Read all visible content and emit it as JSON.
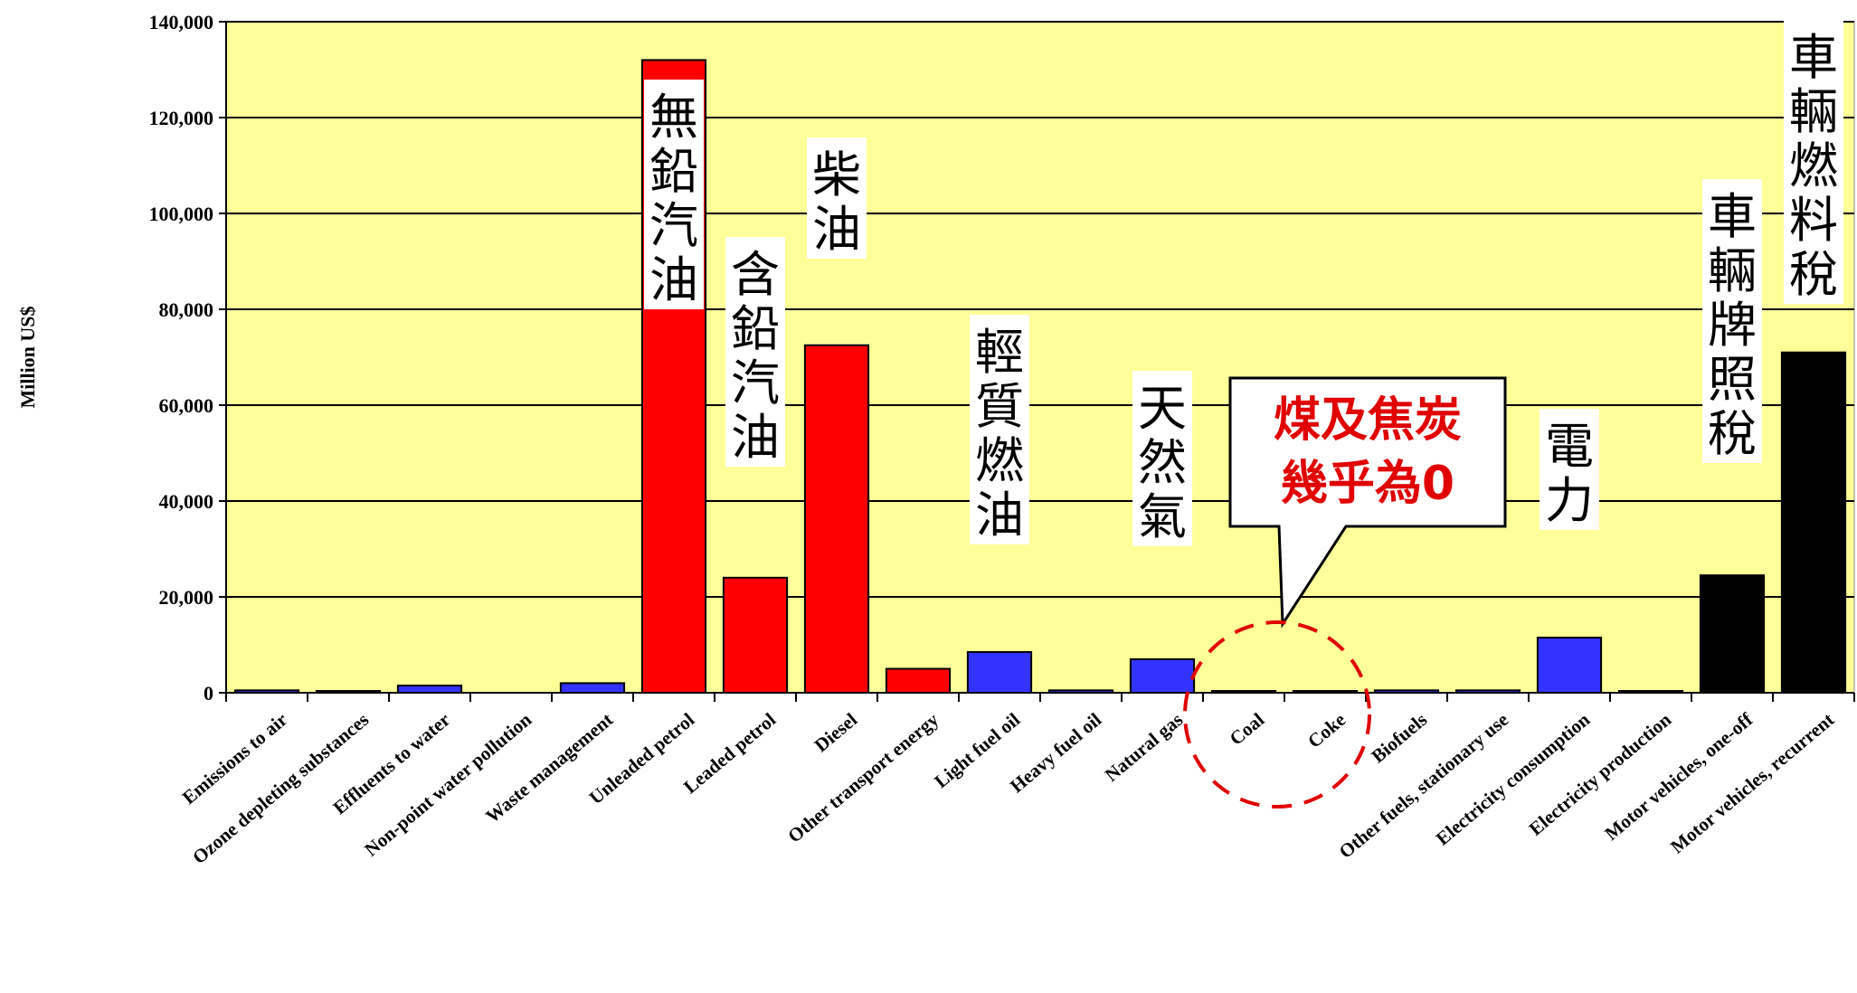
{
  "chart_data": {
    "type": "bar",
    "ylabel": "Million US$",
    "ylim": [
      0,
      140000
    ],
    "yticks": [
      0,
      20000,
      40000,
      60000,
      80000,
      100000,
      120000,
      140000
    ],
    "ytick_labels": [
      "0",
      "20,000",
      "40,000",
      "60,000",
      "80,000",
      "100,000",
      "120,000",
      "140,000"
    ],
    "grid": true,
    "categories": [
      "Emissions to air",
      "Ozone depleting substances",
      "Effluents to water",
      "Non-point  water pollution",
      "Waste management",
      "Unleaded petrol",
      "Leaded petrol",
      "Diesel",
      "Other transport energy",
      "Light fuel oil",
      "Heavy fuel oil",
      "Natural gas",
      "Coal",
      "Coke",
      "Biofuels",
      "Other fuels, stationary use",
      "Electricity consumption",
      "Electricity production",
      "Motor vehicles, one-off",
      "Motor vehicles, recurrent"
    ],
    "values": [
      500,
      300,
      1500,
      0,
      2000,
      132000,
      24000,
      72500,
      5000,
      8500,
      500,
      7000,
      200,
      100,
      500,
      500,
      11500,
      300,
      24500,
      71000
    ],
    "bar_colors": [
      "#3333ff",
      "#3333ff",
      "#3333ff",
      "#3333ff",
      "#3333ff",
      "#ff0000",
      "#ff0000",
      "#ff0000",
      "#ff0000",
      "#3333ff",
      "#3333ff",
      "#3333ff",
      "#3333ff",
      "#3333ff",
      "#3333ff",
      "#3333ff",
      "#3333ff",
      "#3333ff",
      "#000000",
      "#000000"
    ],
    "annotations": [
      {
        "category_index": 5,
        "text": "無鉛汽油"
      },
      {
        "category_index": 6,
        "text": "含鉛汽油"
      },
      {
        "category_index": 7,
        "text": "柴油"
      },
      {
        "category_index": 9,
        "text": "輕質燃油"
      },
      {
        "category_index": 11,
        "text": "天然氣"
      },
      {
        "category_index": 16,
        "text": "電力"
      },
      {
        "category_index": 18,
        "text": "車輛牌照稅"
      },
      {
        "category_index": 19,
        "text": "車輛燃料稅"
      }
    ],
    "callout": {
      "lines": [
        "煤及焦炭",
        "幾乎為0"
      ],
      "color": "#e00000",
      "targets": [
        "Coal",
        "Coke"
      ]
    }
  },
  "colors": {
    "plot_background": "#ffff99",
    "gridline": "#000000"
  }
}
